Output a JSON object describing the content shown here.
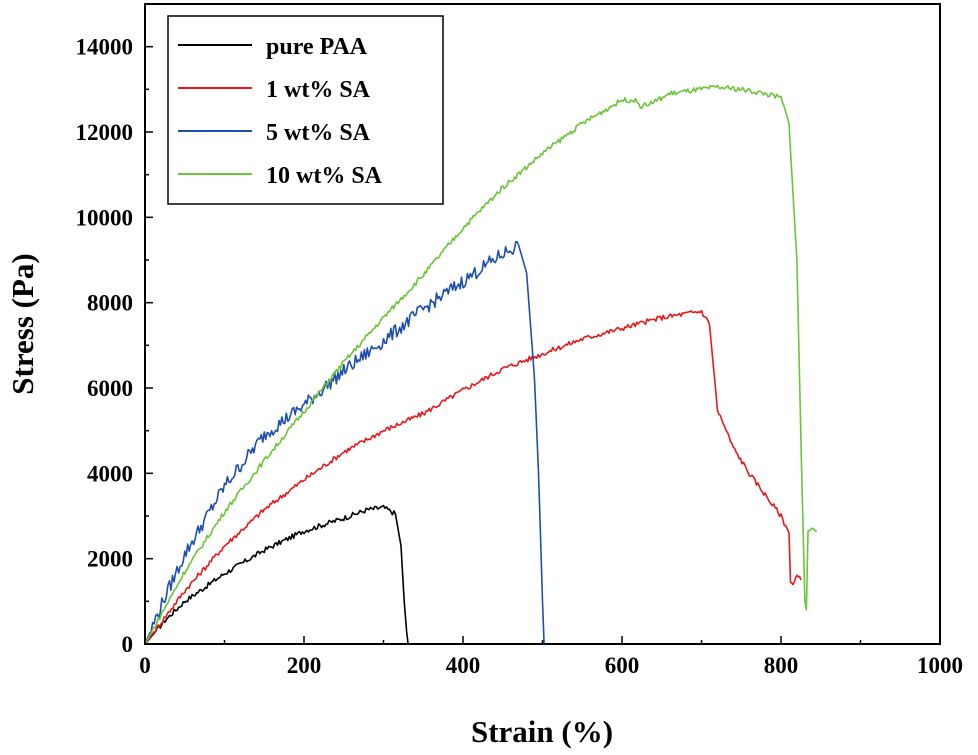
{
  "chart_data": {
    "type": "line",
    "title": "",
    "xlabel": "Strain (%)",
    "ylabel": "Stress (Pa)",
    "xlim": [
      0,
      1000
    ],
    "ylim": [
      0,
      15000
    ],
    "xticks": [
      0,
      200,
      400,
      600,
      800,
      1000
    ],
    "xtick_labels": [
      "0",
      "200",
      "400",
      "600",
      "800",
      "1000"
    ],
    "yticks": [
      0,
      2000,
      4000,
      6000,
      8000,
      10000,
      12000,
      14000
    ],
    "ytick_labels": [
      "0",
      "2000",
      "4000",
      "6000",
      "8000",
      "10000",
      "12000",
      "14000"
    ],
    "grid": false,
    "legend_position": "top-left",
    "series": [
      {
        "name": "pure PAA",
        "color": "#000000",
        "x": [
          0,
          25,
          50,
          100,
          150,
          200,
          250,
          280,
          300,
          315,
          322,
          326,
          329,
          331
        ],
        "y": [
          0,
          550,
          1000,
          1650,
          2200,
          2650,
          2950,
          3150,
          3200,
          3050,
          2300,
          1000,
          300,
          0
        ]
      },
      {
        "name": "1 wt% SA",
        "color": "#e8191c",
        "x": [
          0,
          50,
          100,
          150,
          200,
          250,
          300,
          350,
          400,
          450,
          500,
          550,
          600,
          650,
          700,
          710,
          715,
          720,
          740,
          760,
          780,
          800,
          810,
          812,
          815,
          820,
          825
        ],
        "y": [
          0,
          1250,
          2300,
          3150,
          3850,
          4500,
          5000,
          5400,
          5950,
          6450,
          6800,
          7150,
          7400,
          7650,
          7800,
          7500,
          6500,
          5500,
          4600,
          4000,
          3500,
          3000,
          2600,
          1500,
          1400,
          1600,
          1500
        ]
      },
      {
        "name": "5 wt% SA",
        "color": "#1e4fad",
        "x": [
          0,
          25,
          50,
          100,
          150,
          200,
          250,
          300,
          350,
          400,
          450,
          470,
          480,
          490,
          495,
          500,
          502
        ],
        "y": [
          0,
          1100,
          2100,
          3700,
          4900,
          5600,
          6400,
          7100,
          7850,
          8500,
          9150,
          9350,
          8700,
          6200,
          4000,
          1000,
          0
        ]
      },
      {
        "name": "10 wt% SA",
        "color": "#6cc438",
        "x": [
          0,
          50,
          100,
          150,
          200,
          250,
          300,
          350,
          400,
          450,
          500,
          550,
          600,
          615,
          625,
          640,
          660,
          700,
          720,
          750,
          780,
          800,
          810,
          820,
          826,
          830,
          832,
          834,
          838,
          845
        ],
        "y": [
          0,
          1700,
          3100,
          4300,
          5450,
          6600,
          7650,
          8650,
          9750,
          10700,
          11500,
          12200,
          12750,
          12750,
          12600,
          12700,
          12900,
          13000,
          13050,
          13000,
          12900,
          12800,
          12200,
          9000,
          4000,
          1000,
          800,
          2700,
          2700,
          2650
        ]
      }
    ]
  }
}
